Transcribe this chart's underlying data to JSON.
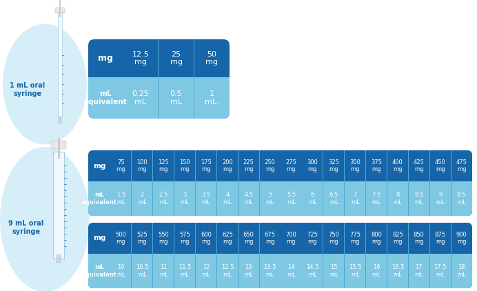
{
  "bg_color": "#ffffff",
  "ellipse_color": "#d6eef8",
  "dark_blue": "#1565a8",
  "light_blue": "#7ec8e3",
  "divider_color": "#4fa8d0",
  "white": "#ffffff",
  "label_color": "#1565a8",
  "table1": {
    "label": "1 mL oral\nsyringe",
    "mg_values": [
      "12.5\nmg",
      "25\nmg",
      "50\nmg"
    ],
    "ml_values": [
      "0.25\nmL",
      "0.5\nmL",
      "1\nmL."
    ]
  },
  "table2": {
    "label": "9 mL oral\nsyringe",
    "mg_row1": [
      "75\nmg",
      "100\nmg",
      "125\nmg",
      "150\nmg",
      "175\nmg",
      "200\nmg",
      "225\nmg",
      "250\nmg",
      "275\nmg",
      "300\nmg",
      "325\nmg",
      "350\nmg",
      "375\nmg",
      "400\nmg",
      "425\nmg",
      "450\nmg",
      "475\nmg"
    ],
    "ml_row1": [
      "1.5\nmL",
      "2\nmL",
      "2.5\nmL",
      "3\nmL",
      "3.5\nmL",
      "4\nmL",
      "4.5\nmL",
      "5\nmL",
      "5.5\nmL",
      "6\nmL",
      "6.5\nmL",
      "7\nmL",
      "7.5\nmL",
      "8\nmL",
      "8.5\nmL",
      "9\nmL",
      "9.5\nmL"
    ],
    "mg_row2": [
      "500\nmg",
      "525\nmg",
      "550\nmg",
      "575\nmg",
      "600\nmg",
      "625\nmg",
      "650\nmg",
      "675\nmg",
      "700\nmg",
      "725\nmg",
      "750\nmg",
      "775\nmg",
      "800\nmg",
      "825\nmg",
      "850\nmg",
      "875\nmg",
      "900\nmg"
    ],
    "ml_row2": [
      "10\nmL",
      "10.5\nmL",
      "11\nmL",
      "11.5\nmL",
      "12\nmL",
      "12.5\nmL",
      "13\nmL",
      "13.5\nmL",
      "14\nmL",
      "14.5\nmL",
      "15\nmL",
      "15.5\nmL",
      "16\nmL",
      "16.5\nmL",
      "17\nmL",
      "17.5\nmL",
      "18\nmL"
    ]
  }
}
